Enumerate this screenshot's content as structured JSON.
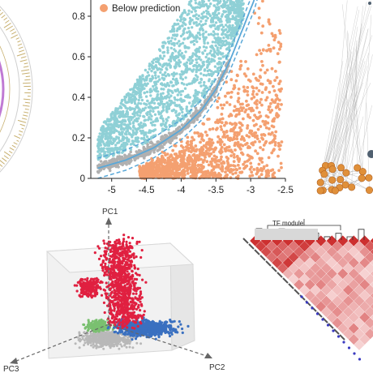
{
  "chart_data": [
    {
      "panel": "circos",
      "type": "other",
      "colors": {
        "purple": "#c07ad4",
        "tan": "#c8b070",
        "blue": "#5a8ab8",
        "dark": "#333333"
      }
    },
    {
      "panel": "scatter-prediction",
      "type": "scatter",
      "xlim": [
        -5.3,
        -2.5
      ],
      "ylim": [
        0,
        0.88
      ],
      "xticks": [
        -5,
        -4.5,
        -4,
        -3.5,
        -3,
        -2.5
      ],
      "yticks": [
        0,
        0.2,
        0.4,
        0.6,
        0.8
      ],
      "xtick_labels": [
        "-5",
        "-4.5",
        "-4",
        "-3.5",
        "-3",
        "-2.5"
      ],
      "ytick_labels": [
        "0",
        "0.2",
        "0.4",
        "0.6",
        "0.8"
      ],
      "legend": {
        "label": "Below prediction",
        "color": "#f4a070",
        "position": "top-left"
      },
      "series": [
        {
          "name": "Below prediction",
          "color": "#f4a070"
        },
        {
          "color": "#8fd0d6"
        },
        {
          "color": "#b0b0b0"
        }
      ],
      "prediction_curve": {
        "x": [
          -5.2,
          -4.8,
          -4.4,
          -4.0,
          -3.7,
          -3.5,
          -3.3,
          -3.1,
          -2.95
        ],
        "y": [
          0.05,
          0.09,
          0.15,
          0.24,
          0.34,
          0.44,
          0.58,
          0.75,
          0.88
        ],
        "color": "#5aa8d8"
      }
    },
    {
      "panel": "network",
      "type": "other",
      "colors": {
        "node": "#e0903a",
        "edge": "#aaaaaa",
        "hub": "#506070"
      }
    },
    {
      "panel": "pca-3d",
      "type": "scatter",
      "axes": [
        "PC1",
        "PC2",
        "PC3"
      ],
      "series": [
        {
          "color": "#e02040"
        },
        {
          "color": "#3a70c0"
        },
        {
          "color": "#7ac070"
        },
        {
          "color": "#b8b8b8"
        }
      ]
    },
    {
      "panel": "correlation-heatmap",
      "type": "heatmap",
      "module_label": "TF module",
      "colors": {
        "high": "#d03030",
        "low": "#fbe4e4",
        "dot": "#3a3ac0"
      }
    }
  ]
}
